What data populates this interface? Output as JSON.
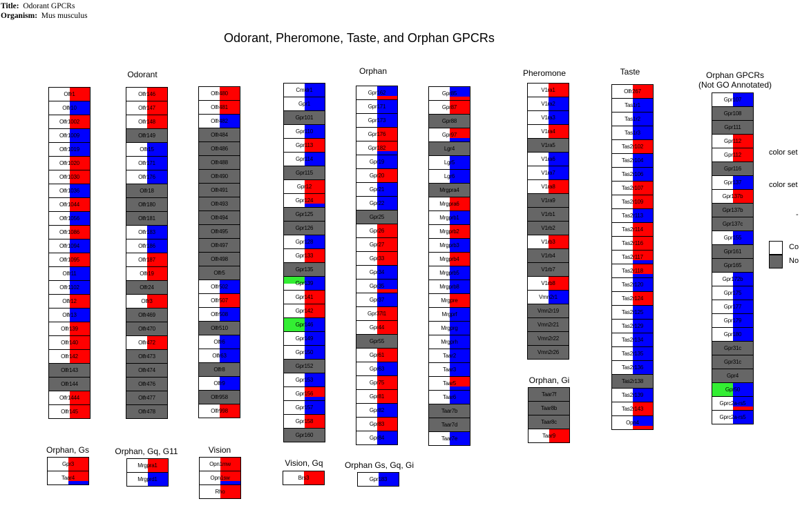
{
  "header": {
    "title_label": "Title:",
    "title_value": "Odorant GPCRs",
    "organism_label": "Organism:",
    "organism_value": "Mus musculus"
  },
  "main_title": "Odorant, Pheromone, Taste, and Orphan GPCRs",
  "colors": {
    "up": "#ff0000",
    "down": "#0000ff",
    "no_criteria": "#ffffff",
    "not_found": "#666666",
    "highlight": "#33ee33"
  },
  "groups": [
    {
      "label": "Odorant"
    },
    {
      "label": "Orphan"
    },
    {
      "label": "Pheromone"
    },
    {
      "label": "Taste"
    },
    {
      "label": "Orphan GPCRs\n(Not GO Annotated)"
    },
    {
      "label": "Orphan, Gi"
    },
    {
      "label": "Orphan, Gs"
    },
    {
      "label": "Orphan, Gq, G11"
    },
    {
      "label": "Vision"
    },
    {
      "label": "Vision, Gq"
    },
    {
      "label": "Orphan Gs, Gq, Gi"
    }
  ],
  "columns": [
    {
      "genes": [
        [
          "Olfr1",
          "r"
        ],
        [
          "Olfr10",
          "b"
        ],
        [
          "Olfr1002",
          "r"
        ],
        [
          "Olfr1009",
          "b"
        ],
        [
          "Olfr1019",
          "b"
        ],
        [
          "Olfr1020",
          "r"
        ],
        [
          "Olfr1030",
          "r"
        ],
        [
          "Olfr1036",
          "b"
        ],
        [
          "Olfr1044",
          "r"
        ],
        [
          "Olfr1056",
          "b"
        ],
        [
          "Olfr1086",
          "r"
        ],
        [
          "Olfr1094",
          "b"
        ],
        [
          "Olfr1095",
          "r"
        ],
        [
          "Olfr11",
          "b"
        ],
        [
          "Olfr1102",
          "b"
        ],
        [
          "Olfr12",
          "r"
        ],
        [
          "Olfr13",
          "b"
        ],
        [
          "Olfr139",
          "r"
        ],
        [
          "Olfr140",
          "r"
        ],
        [
          "Olfr142",
          "r"
        ],
        [
          "Olfr143",
          "na"
        ],
        [
          "Olfr144",
          "na"
        ],
        [
          "Olfr1444",
          "r"
        ],
        [
          "Olfr145",
          "r"
        ]
      ]
    },
    {
      "genes": [
        [
          "Olfr146",
          "r"
        ],
        [
          "Olfr147",
          "r"
        ],
        [
          "Olfr148",
          "r"
        ],
        [
          "Olfr149",
          "na"
        ],
        [
          "Olfr15",
          "b"
        ],
        [
          "Olfr171",
          "b"
        ],
        [
          "Olfr176",
          "b"
        ],
        [
          "Olfr18",
          "na"
        ],
        [
          "Olfr180",
          "na"
        ],
        [
          "Olfr181",
          "na"
        ],
        [
          "Olfr183",
          "b"
        ],
        [
          "Olfr186",
          "b"
        ],
        [
          "Olfr187",
          "r"
        ],
        [
          "Olfr19",
          "r"
        ],
        [
          "Olfr24",
          "na"
        ],
        [
          "Olfr3",
          "r"
        ],
        [
          "Olfr469",
          "na"
        ],
        [
          "Olfr470",
          "na"
        ],
        [
          "Olfr472",
          "r"
        ],
        [
          "Olfr473",
          "na"
        ],
        [
          "Olfr474",
          "na"
        ],
        [
          "Olfr476",
          "na"
        ],
        [
          "Olfr477",
          "na"
        ],
        [
          "Olfr478",
          "na"
        ]
      ]
    },
    {
      "genes": [
        [
          "Olfr480",
          "r"
        ],
        [
          "Olfr481",
          "r"
        ],
        [
          "Olfr482",
          "b"
        ],
        [
          "Olfr484",
          "na"
        ],
        [
          "Olfr486",
          "na"
        ],
        [
          "Olfr488",
          "na"
        ],
        [
          "Olfr490",
          "na"
        ],
        [
          "Olfr491",
          "na"
        ],
        [
          "Olfr493",
          "na"
        ],
        [
          "Olfr494",
          "na"
        ],
        [
          "Olfr495",
          "na"
        ],
        [
          "Olfr497",
          "na"
        ],
        [
          "Olfr498",
          "na"
        ],
        [
          "Olfr5",
          "na"
        ],
        [
          "Olfr502",
          "b"
        ],
        [
          "Olfr507",
          "r"
        ],
        [
          "Olfr508",
          "b"
        ],
        [
          "Olfr510",
          "na"
        ],
        [
          "Olfr6",
          "b"
        ],
        [
          "Olfr63",
          "b"
        ],
        [
          "Olfr8",
          "na"
        ],
        [
          "Olfr9",
          "b"
        ],
        [
          "Olfr958",
          "na"
        ],
        [
          "Olfr998",
          "r"
        ]
      ]
    },
    {
      "genes": [
        [
          "Cmklr1",
          "b"
        ],
        [
          "Gpr1",
          "b"
        ],
        [
          "Gpr101",
          "na"
        ],
        [
          "Gpr110",
          "b"
        ],
        [
          "Gpr113",
          "r"
        ],
        [
          "Gpr114",
          "b"
        ],
        [
          "Gpr115",
          "na"
        ],
        [
          "Gpr12",
          "r"
        ],
        [
          "Gpr124",
          "rb"
        ],
        [
          "Gpr125",
          "na"
        ],
        [
          "Gpr126",
          "na"
        ],
        [
          "Gpr128",
          "b"
        ],
        [
          "Gpr133",
          "r"
        ],
        [
          "Gpr135",
          "na"
        ],
        [
          "Gpr139",
          "bg"
        ],
        [
          "Gpr141",
          "r"
        ],
        [
          "Gpr142",
          "r"
        ],
        [
          "Gpr146",
          "bG"
        ],
        [
          "Gpr149",
          "b"
        ],
        [
          "Gpr150",
          "b"
        ],
        [
          "Gpr152",
          "na"
        ],
        [
          "Gpr153",
          "b"
        ],
        [
          "Gpr156",
          "rb"
        ],
        [
          "Gpr157",
          "b"
        ],
        [
          "Gpr158",
          "r"
        ],
        [
          "Gpr160",
          "na"
        ]
      ]
    },
    {
      "genes": [
        [
          "Gpr162",
          "br"
        ],
        [
          "Gpr171",
          "b"
        ],
        [
          "Gpr173",
          "b"
        ],
        [
          "Gpr176",
          "r"
        ],
        [
          "Gpr182",
          "rb"
        ],
        [
          "Gpr19",
          "b"
        ],
        [
          "Gpr20",
          "r"
        ],
        [
          "Gpr21",
          "b"
        ],
        [
          "Gpr22",
          "b"
        ],
        [
          "Gpr25",
          "na"
        ],
        [
          "Gpr26",
          "r"
        ],
        [
          "Gpr27",
          "r"
        ],
        [
          "Gpr33",
          "r"
        ],
        [
          "Gpr34",
          "b"
        ],
        [
          "Gpr35",
          "br"
        ],
        [
          "Gpr37",
          "b"
        ],
        [
          "Gpr37l1",
          "r"
        ],
        [
          "Gpr44",
          "r"
        ],
        [
          "Gpr55",
          "na"
        ],
        [
          "Gpr61",
          "r"
        ],
        [
          "Gpr63",
          "b"
        ],
        [
          "Gpr75",
          "r"
        ],
        [
          "Gpr81",
          "r"
        ],
        [
          "Gpr82",
          "b"
        ],
        [
          "Gpr83",
          "r"
        ],
        [
          "Gpr84",
          "b"
        ]
      ]
    },
    {
      "genes": [
        [
          "Gpr85",
          "br"
        ],
        [
          "Gpr87",
          "r"
        ],
        [
          "Gpr88",
          "na"
        ],
        [
          "Gpr97",
          "rb"
        ],
        [
          "Lgr4",
          "na"
        ],
        [
          "Lgr5",
          "b"
        ],
        [
          "Lgr6",
          "b"
        ],
        [
          "Mrgpra4",
          "na"
        ],
        [
          "Mrgpra6",
          "r"
        ],
        [
          "Mrgprb1",
          "b"
        ],
        [
          "Mrgprb2",
          "r"
        ],
        [
          "Mrgprb3",
          "b"
        ],
        [
          "Mrgprb4",
          "r"
        ],
        [
          "Mrgprb5",
          "b"
        ],
        [
          "Mrgprb8",
          "b"
        ],
        [
          "Mrgpre",
          "r"
        ],
        [
          "Mrgprf",
          "b"
        ],
        [
          "Mrgprg",
          "b"
        ],
        [
          "Mrgprh",
          "b"
        ],
        [
          "Taar2",
          "b"
        ],
        [
          "Taar3",
          "b"
        ],
        [
          "Taar5",
          "rb"
        ],
        [
          "Taar6",
          "b"
        ],
        [
          "Taar7b",
          "na"
        ],
        [
          "Taar7d",
          "na"
        ],
        [
          "Taar7e",
          "b"
        ]
      ]
    },
    {
      "genes": [
        [
          "V1ra1",
          "r"
        ],
        [
          "V1ra2",
          "b"
        ],
        [
          "V1ra3",
          "b"
        ],
        [
          "V1ra4",
          "r"
        ],
        [
          "V1ra5",
          "na"
        ],
        [
          "V1ra6",
          "b"
        ],
        [
          "V1ra7",
          "b"
        ],
        [
          "V1ra8",
          "r"
        ],
        [
          "V1ra9",
          "na"
        ],
        [
          "V1rb1",
          "na"
        ],
        [
          "V1rb2",
          "na"
        ],
        [
          "V1rb3",
          "r"
        ],
        [
          "V1rb4",
          "na"
        ],
        [
          "V1rb7",
          "na"
        ],
        [
          "V1rb8",
          "r"
        ],
        [
          "Vmn2r1",
          "b"
        ],
        [
          "Vmn2r19",
          "na"
        ],
        [
          "Vmn2r21",
          "na"
        ],
        [
          "Vmn2r22",
          "na"
        ],
        [
          "Vmn2r26",
          "na"
        ]
      ]
    },
    {
      "genes": [
        [
          "Olfr267",
          "r"
        ],
        [
          "Tas1r1",
          "b"
        ],
        [
          "Tas1r2",
          "b"
        ],
        [
          "Tas1r3",
          "b"
        ],
        [
          "Tas2r102",
          "r"
        ],
        [
          "Tas2r104",
          "b"
        ],
        [
          "Tas2r106",
          "b"
        ],
        [
          "Tas2r107",
          "r"
        ],
        [
          "Tas2r109",
          "r"
        ],
        [
          "Tas2r113",
          "b"
        ],
        [
          "Tas2r114",
          "r"
        ],
        [
          "Tas2r116",
          "r"
        ],
        [
          "Tas2r117",
          "rb"
        ],
        [
          "Tas2r118",
          "rb"
        ],
        [
          "Tas2r120",
          "b"
        ],
        [
          "Tas2r124",
          "r"
        ],
        [
          "Tas2r125",
          "b"
        ],
        [
          "Tas2r129",
          "b"
        ],
        [
          "Tas2r134",
          "b"
        ],
        [
          "Tas2r135",
          "b"
        ],
        [
          "Tas2r136",
          "b"
        ],
        [
          "Tas2r138",
          "na"
        ],
        [
          "Tas2r139",
          "b"
        ],
        [
          "Tas2r143",
          "r"
        ],
        [
          "Opn4",
          "br"
        ]
      ]
    },
    {
      "genes": [
        [
          "Gpr107",
          "b"
        ],
        [
          "Gpr108",
          "na"
        ],
        [
          "Gpr111",
          "na"
        ],
        [
          "Gpr112",
          "r"
        ],
        [
          "Gpr112",
          "r"
        ],
        [
          "Gpr116",
          "na"
        ],
        [
          "Gpr137",
          "b"
        ],
        [
          "Gpr137b",
          "r"
        ],
        [
          "Gpr137b",
          "na"
        ],
        [
          "Gpr137c",
          "na"
        ],
        [
          "Gpr155",
          "b"
        ],
        [
          "Gpr161",
          "na"
        ],
        [
          "Gpr165",
          "na"
        ],
        [
          "Gpr172b",
          "b"
        ],
        [
          "Gpr175",
          "b"
        ],
        [
          "Gpr177",
          "b"
        ],
        [
          "Gpr179",
          "b"
        ],
        [
          "Gpr180",
          "b"
        ],
        [
          "Gpr31c",
          "na"
        ],
        [
          "Gpr31c",
          "na"
        ],
        [
          "Gpr4",
          "na"
        ],
        [
          "Gpr50",
          "bG"
        ],
        [
          "Gprc2a-rs5",
          "br"
        ],
        [
          "Gprc2a-rs5",
          "b"
        ]
      ]
    },
    {
      "genes": [
        [
          "Taar7f",
          "na"
        ],
        [
          "Taar8b",
          "na"
        ],
        [
          "Taar8c",
          "na"
        ],
        [
          "Taar9",
          "r"
        ]
      ]
    },
    {
      "genes": [
        [
          "Gpr3",
          "r"
        ],
        [
          "Taar4",
          "rb"
        ]
      ]
    },
    {
      "genes": [
        [
          "Mrgpra1",
          "r"
        ],
        [
          "Mrgprd1",
          "b"
        ]
      ]
    },
    {
      "genes": [
        [
          "Opn1mw",
          "r"
        ],
        [
          "Opn1sw",
          "rb"
        ],
        [
          "Rho",
          "r"
        ]
      ]
    },
    {
      "genes": [
        [
          "Brs3",
          "r"
        ]
      ]
    },
    {
      "genes": [
        [
          "Gpr183",
          "b"
        ]
      ]
    }
  ],
  "legend": [
    {
      "text": "color set"
    },
    {
      "text": "color set"
    },
    {
      "text": "-"
    },
    {
      "text": "Co",
      "swatch": "#ffffff"
    },
    {
      "text": "No",
      "swatch": "#666666"
    }
  ]
}
